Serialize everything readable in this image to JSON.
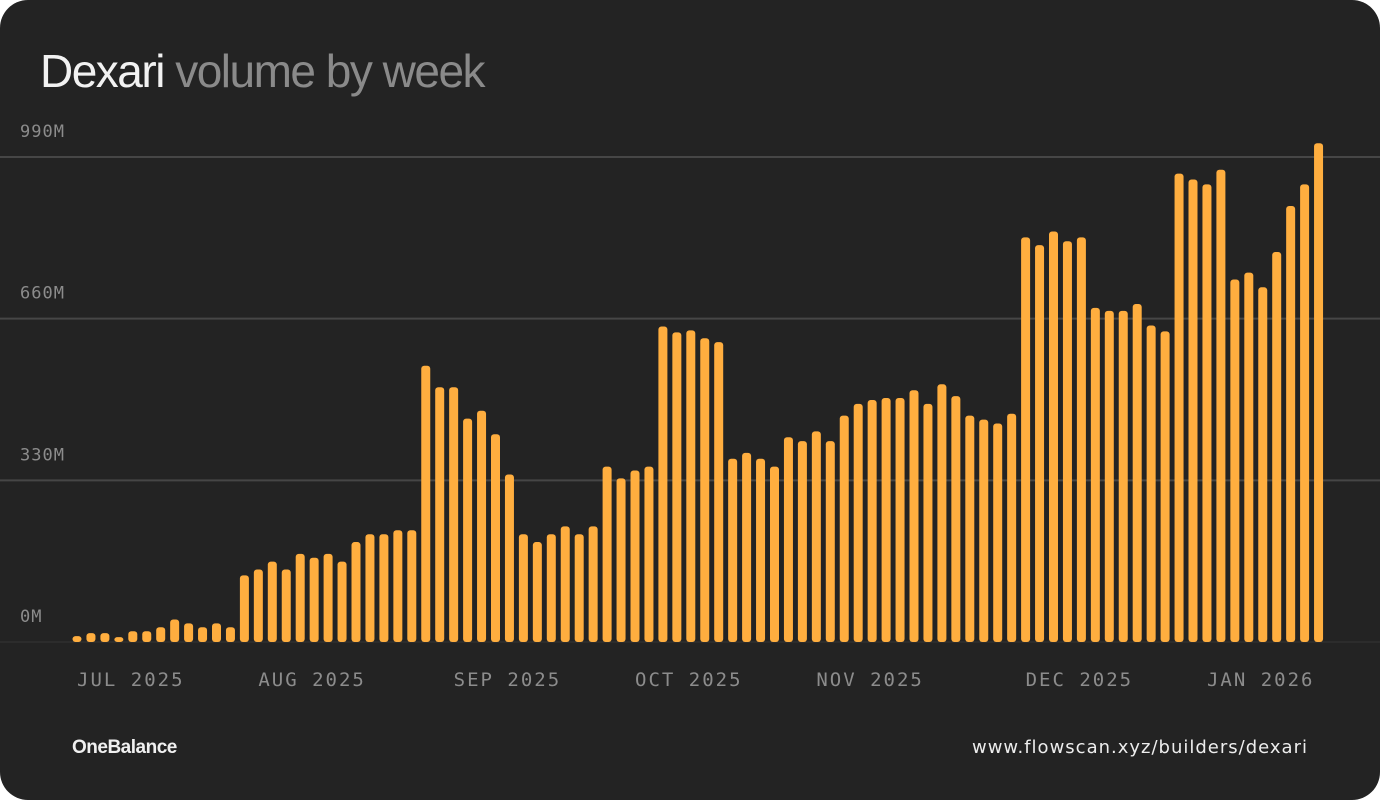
{
  "header": {
    "title_name": "Dexari",
    "title_rest": "volume by week"
  },
  "footer": {
    "brand": "OneBalance",
    "url": "www.flowscan.xyz/builders/dexari"
  },
  "colors": {
    "background": "#232323",
    "bar": "#ffae3f",
    "grid": "#4a4a4a",
    "tick": "#8c8c8c"
  },
  "chart_data": {
    "type": "bar",
    "title": "Dexari volume by week",
    "xlabel": "",
    "ylabel": "",
    "ylim": [
      0,
      990
    ],
    "unit": "M",
    "grid": true,
    "y_ticks": [
      {
        "value": 0,
        "label": "0M"
      },
      {
        "value": 330,
        "label": "330M"
      },
      {
        "value": 660,
        "label": "660M"
      },
      {
        "value": 990,
        "label": "990M"
      }
    ],
    "x_ticks": [
      {
        "index": 0,
        "label": "JUL 2025"
      },
      {
        "index": 13,
        "label": "AUG 2025"
      },
      {
        "index": 27,
        "label": "SEP 2025"
      },
      {
        "index": 40,
        "label": "OCT 2025"
      },
      {
        "index": 53,
        "label": "NOV 2025"
      },
      {
        "index": 68,
        "label": "DEC 2025"
      },
      {
        "index": 81,
        "label": "JAN 2026"
      }
    ],
    "values": [
      12,
      18,
      18,
      10,
      22,
      22,
      30,
      46,
      38,
      30,
      38,
      30,
      136,
      148,
      164,
      148,
      180,
      172,
      180,
      164,
      204,
      220,
      220,
      228,
      228,
      564,
      520,
      520,
      456,
      472,
      424,
      342,
      220,
      204,
      220,
      236,
      220,
      236,
      358,
      334,
      350,
      358,
      644,
      632,
      636,
      620,
      612,
      374,
      386,
      374,
      358,
      418,
      410,
      430,
      410,
      462,
      486,
      494,
      498,
      498,
      514,
      486,
      526,
      502,
      462,
      454,
      446,
      466,
      826,
      810,
      838,
      818,
      826,
      682,
      676,
      676,
      690,
      646,
      634,
      956,
      944,
      934,
      964,
      740,
      754,
      724,
      796,
      890,
      934,
      1018
    ]
  }
}
